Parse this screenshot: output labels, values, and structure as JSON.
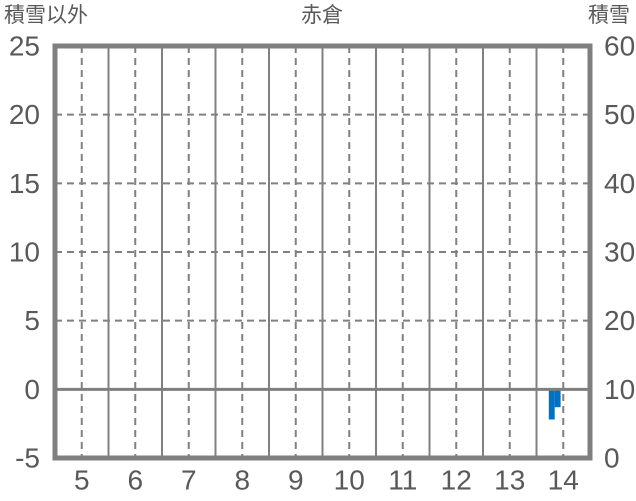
{
  "header": {
    "left_axis_title": "積雪以外",
    "title": "赤倉",
    "right_axis_title": "積雪"
  },
  "colors": {
    "bar": "#0070c0",
    "grid": "#808080",
    "border": "#7f7f7f",
    "text": "#595959",
    "background": "#ffffff"
  },
  "chart_data": {
    "type": "bar",
    "title": "赤倉",
    "left_axis": {
      "title": "積雪以外",
      "min": -5,
      "max": 25,
      "ticks": [
        -5,
        0,
        5,
        10,
        15,
        20,
        25
      ]
    },
    "right_axis": {
      "title": "積雪",
      "min": 0,
      "max": 60,
      "ticks": [
        0,
        10,
        20,
        30,
        40,
        50,
        60
      ]
    },
    "x_axis": {
      "min": 4.5,
      "max": 14.5,
      "ticks": [
        5,
        6,
        7,
        8,
        9,
        10,
        11,
        12,
        13,
        14
      ]
    },
    "gridlines": {
      "vertical_dashed": [
        5,
        6,
        7,
        8,
        9,
        10,
        11,
        12,
        13,
        14
      ],
      "vertical_solid": [
        5.5,
        6.5,
        7.5,
        8.5,
        9.5,
        10.5,
        11.5,
        12.5,
        13.5
      ],
      "horizontal_dashed": [
        5,
        10,
        15,
        20
      ],
      "horizontal_solid": [
        0
      ]
    },
    "bars": [
      {
        "x_start": 13.73,
        "x_end": 13.84,
        "value": -2.2
      },
      {
        "x_start": 13.84,
        "x_end": 13.95,
        "value": -1.3
      }
    ],
    "bar_axis": "left",
    "legend_position": "none",
    "grid_on": true
  }
}
